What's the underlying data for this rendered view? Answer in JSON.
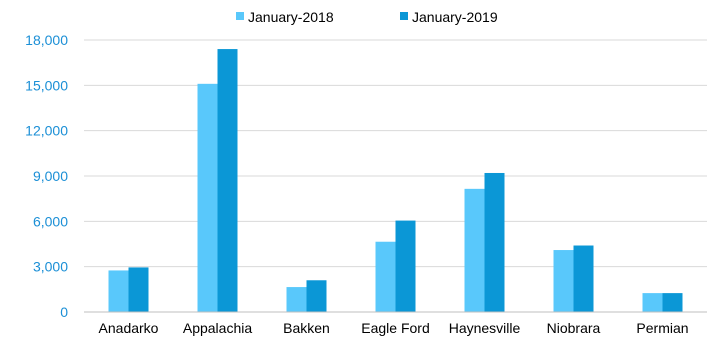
{
  "chart_data": {
    "type": "bar",
    "categories": [
      "Anadarko",
      "Appalachia",
      "Bakken",
      "Eagle Ford",
      "Haynesville",
      "Niobrara",
      "Permian"
    ],
    "series": [
      {
        "name": "January-2018",
        "values": [
          2750,
          15100,
          1650,
          4650,
          8150,
          4100,
          1250
        ],
        "color": "#59c8fb"
      },
      {
        "name": "January-2019",
        "values": [
          2950,
          17400,
          2100,
          6050,
          9200,
          4400,
          1250
        ],
        "color": "#0b97d6"
      }
    ],
    "y_ticks": [
      "0",
      "3,000",
      "6,000",
      "9,000",
      "12,000",
      "15,000",
      "18,000"
    ],
    "ylim": [
      0,
      18000
    ],
    "grid": true,
    "legend_position": "top-center",
    "title": "",
    "xlabel": "",
    "ylabel": "",
    "colors": {
      "tick_y": "#1b8fd6",
      "tick_x": "#000000",
      "grid": "#d9d9d9",
      "axis": "#bfbfbf"
    }
  }
}
